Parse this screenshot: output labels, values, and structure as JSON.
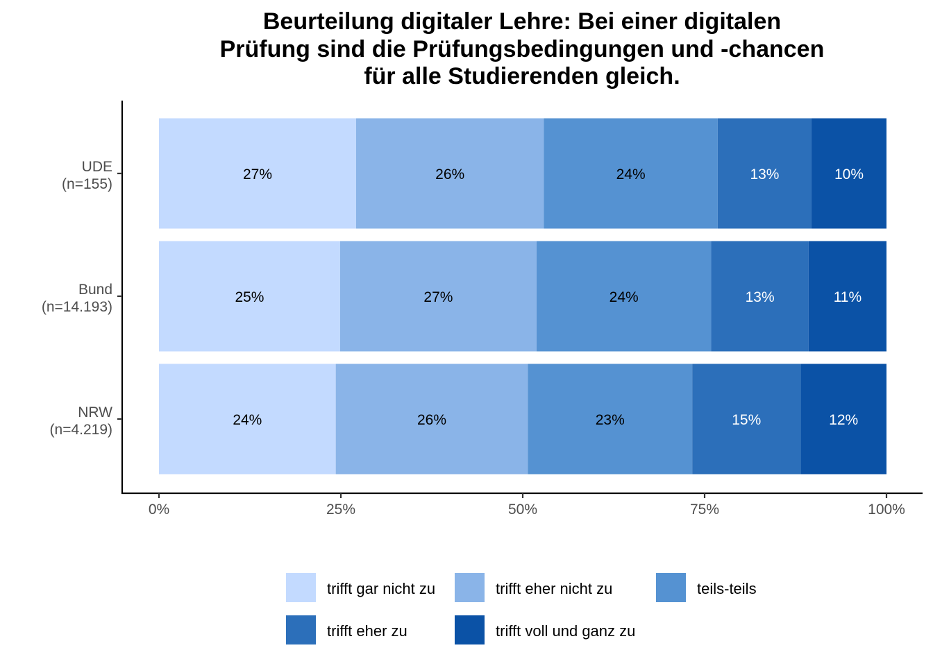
{
  "chart_data": {
    "type": "bar",
    "orientation": "horizontal",
    "stacked": "percent",
    "title": "Beurteilung digitaler Lehre: Bei einer digitalen Prüfung sind die Prüfungsbedingungen und -chancen für alle Studierenden gleich.",
    "title_lines": [
      "Beurteilung digitaler Lehre: Bei einer digitalen",
      "Prüfung sind die Prüfungsbedingungen und -chancen",
      "für alle Studierenden gleich."
    ],
    "xlabel": "",
    "ylabel": "",
    "xlim": [
      0,
      100
    ],
    "x_ticks": [
      0,
      25,
      50,
      75,
      100
    ],
    "x_tick_labels": [
      "0%",
      "25%",
      "50%",
      "75%",
      "100%"
    ],
    "categories": [
      {
        "name": "UDE",
        "n": "(n=155)"
      },
      {
        "name": "Bund",
        "n": "(n=14.193)"
      },
      {
        "name": "NRW",
        "n": "(n=4.219)"
      }
    ],
    "series": [
      {
        "name": "trifft gar nicht zu",
        "color": "#c3daff",
        "label_color": "#000000",
        "values": [
          27.1,
          24.9,
          24.3
        ]
      },
      {
        "name": "trifft eher nicht zu",
        "color": "#8ab4e8",
        "label_color": "#000000",
        "values": [
          25.8,
          27.0,
          26.4
        ]
      },
      {
        "name": "teils-teils",
        "color": "#5592d2",
        "label_color": "#000000",
        "values": [
          23.9,
          24.0,
          22.6
        ]
      },
      {
        "name": "trifft eher zu",
        "color": "#2c6fba",
        "label_color": "#ffffff",
        "values": [
          12.9,
          13.4,
          14.9
        ]
      },
      {
        "name": "trifft voll und ganz zu",
        "color": "#0b52a6",
        "label_color": "#ffffff",
        "values": [
          10.3,
          10.7,
          11.8
        ]
      }
    ],
    "data_labels": [
      [
        "27%",
        "26%",
        "24%",
        "13%",
        "10%"
      ],
      [
        "25%",
        "27%",
        "24%",
        "13%",
        "11%"
      ],
      [
        "24%",
        "26%",
        "23%",
        "15%",
        "12%"
      ]
    ],
    "legend": {
      "position": "bottom",
      "entries": [
        "trifft gar nicht zu",
        "trifft eher nicht zu",
        "teils-teils",
        "trifft eher zu",
        "trifft voll und ganz zu"
      ]
    },
    "grid": false
  }
}
